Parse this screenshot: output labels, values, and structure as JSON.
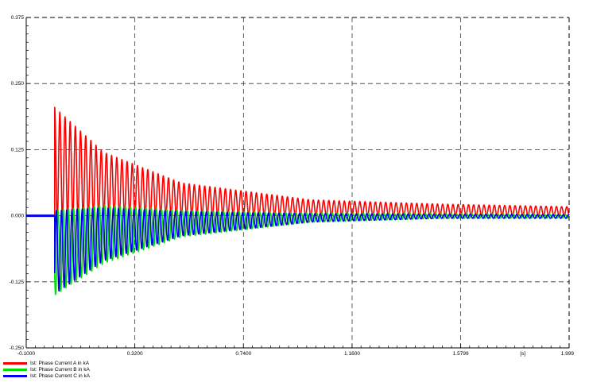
{
  "chart_data": {
    "type": "line",
    "xlim": [
      -0.1,
      1.999
    ],
    "ylim": [
      -0.25,
      0.375
    ],
    "x_ticks": [
      {
        "value": -0.1,
        "label": "-0.1000"
      },
      {
        "value": 0.32,
        "label": "0.3200"
      },
      {
        "value": 0.74,
        "label": "0.7400"
      },
      {
        "value": 1.16,
        "label": "1.1600"
      },
      {
        "value": 1.5799,
        "label": "1.5799"
      },
      {
        "value": 1.999,
        "label": "1.999"
      }
    ],
    "x_unit_label": "[s]",
    "x_unit_value": 1.82,
    "y_ticks": [
      {
        "value": 0.375,
        "label": "0.375"
      },
      {
        "value": 0.25,
        "label": "0.250"
      },
      {
        "value": 0.125,
        "label": "0.125"
      },
      {
        "value": 0.0,
        "label": "0.000"
      },
      {
        "value": -0.125,
        "label": "-0.125"
      },
      {
        "value": -0.25,
        "label": "-0.250"
      }
    ],
    "grid": true,
    "legend_position": "bottom-left",
    "fault_time": 0.01,
    "oscillation_frequency_hz": 50,
    "series": [
      {
        "name": "Ist: Phase Current A in kA",
        "color": "#ff0000",
        "envelope": [
          [
            0.01,
            0.205,
            -0.01
          ],
          [
            0.2,
            0.12,
            0.0
          ],
          [
            0.5,
            0.062,
            0.0
          ],
          [
            1.0,
            0.03,
            0.0
          ],
          [
            1.5,
            0.022,
            0.0
          ],
          [
            1.999,
            0.017,
            0.0
          ]
        ]
      },
      {
        "name": "Ist: Phase Current B in kA",
        "color": "#00dd00",
        "envelope": [
          [
            0.01,
            0.01,
            -0.15
          ],
          [
            0.2,
            0.02,
            -0.09
          ],
          [
            0.5,
            0.01,
            -0.04
          ],
          [
            1.0,
            0.005,
            -0.012
          ],
          [
            1.5,
            0.004,
            -0.005
          ],
          [
            1.999,
            0.003,
            -0.004
          ]
        ]
      },
      {
        "name": "Ist: Phase Current C in kA",
        "color": "#0000ee",
        "envelope": [
          [
            0.01,
            0.01,
            -0.148
          ],
          [
            0.2,
            0.015,
            -0.085
          ],
          [
            0.5,
            0.008,
            -0.038
          ],
          [
            1.0,
            0.004,
            -0.012
          ],
          [
            1.5,
            0.003,
            -0.005
          ],
          [
            1.999,
            0.002,
            -0.005
          ]
        ]
      }
    ]
  }
}
